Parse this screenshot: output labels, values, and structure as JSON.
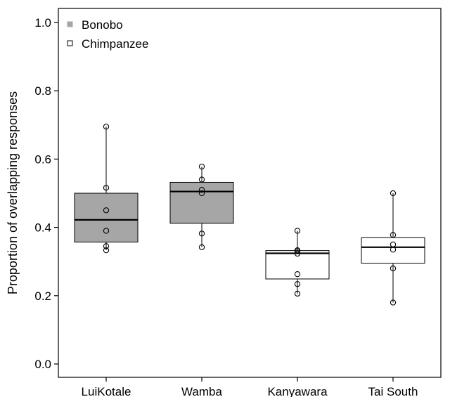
{
  "chart_data": {
    "type": "box",
    "title": "",
    "xlabel": "",
    "ylabel": "Proportion of overlapping responses",
    "ylim": [
      0,
      1.0
    ],
    "yticks": [
      "0.0",
      "0.2",
      "0.4",
      "0.6",
      "0.8",
      "1.0"
    ],
    "categories": [
      "LuiKotale",
      "Wamba",
      "Kanyawara",
      "Tai South"
    ],
    "legend": {
      "position": "top-left",
      "entries": [
        {
          "label": "Bonobo",
          "fill": "#a6a6a6"
        },
        {
          "label": "Chimpanzee",
          "fill": "#ffffff"
        }
      ]
    },
    "grid": false,
    "series": [
      {
        "group": "Bonobo",
        "category": "LuiKotale",
        "q1": 0.357,
        "median": 0.422,
        "q3": 0.5,
        "whisker_low": 0.333,
        "whisker_high": 0.695,
        "points": [
          0.695,
          0.516,
          0.45,
          0.39,
          0.345,
          0.333
        ]
      },
      {
        "group": "Bonobo",
        "category": "Wamba",
        "q1": 0.412,
        "median": 0.505,
        "q3": 0.532,
        "whisker_low": 0.342,
        "whisker_high": 0.578,
        "points": [
          0.578,
          0.54,
          0.51,
          0.5,
          0.382,
          0.342
        ]
      },
      {
        "group": "Chimpanzee",
        "category": "Kanyawara",
        "q1": 0.249,
        "median": 0.324,
        "q3": 0.332,
        "whisker_low": 0.206,
        "whisker_high": 0.39,
        "points": [
          0.39,
          0.333,
          0.33,
          0.323,
          0.263,
          0.234,
          0.206
        ]
      },
      {
        "group": "Chimpanzee",
        "category": "Tai South",
        "q1": 0.295,
        "median": 0.342,
        "q3": 0.37,
        "whisker_low": 0.18,
        "whisker_high": 0.5,
        "points": [
          0.5,
          0.378,
          0.35,
          0.335,
          0.28,
          0.18
        ]
      }
    ]
  }
}
